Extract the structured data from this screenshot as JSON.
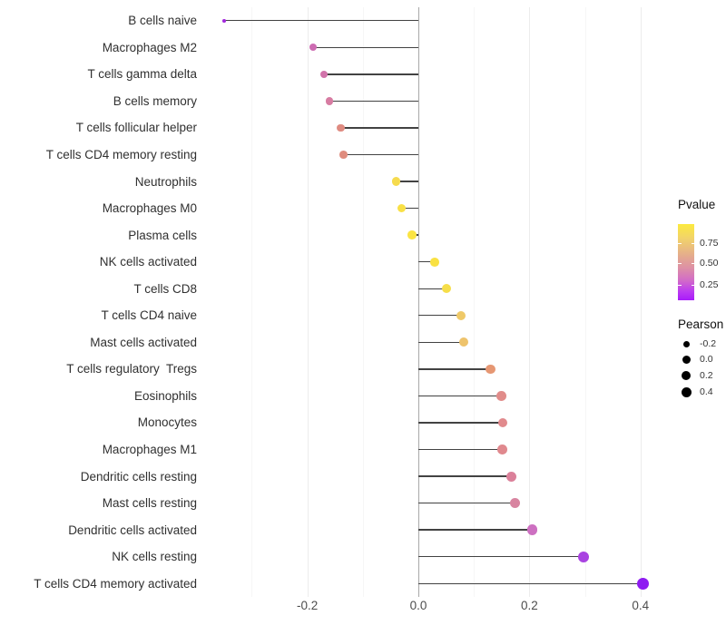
{
  "chart_data": {
    "type": "lollipop",
    "orientation": "horizontal",
    "title": "",
    "xlabel": "",
    "ylabel": "",
    "x_tick_labels": [
      "-0.2",
      "0.0",
      "0.2",
      "0.4"
    ],
    "x_tick_values": [
      -0.2,
      0.0,
      0.2,
      0.4
    ],
    "x_minor_grid_values": [
      -0.3,
      -0.1,
      0.1,
      0.3
    ],
    "x_major_grid_values": [
      -0.2,
      0.2,
      0.4
    ],
    "xlim": [
      -0.4,
      0.44
    ],
    "grid": "vertical-only",
    "zero_reference_line": 0.0,
    "categories": [
      "B cells naive",
      "Macrophages M2",
      "T cells gamma delta",
      "B cells memory",
      "T cells follicular helper",
      "T cells CD4 memory resting",
      "Neutrophils",
      "Macrophages M0",
      "Plasma cells",
      "NK cells activated",
      "T cells CD8",
      "T cells CD4 naive",
      "Mast cells activated",
      "T cells regulatory  Tregs",
      "Eosinophils",
      "Monocytes",
      "Macrophages M1",
      "Dendritic cells resting",
      "Mast cells resting",
      "Dendritic cells activated",
      "NK cells resting",
      "T cells CD4 memory activated"
    ],
    "series": [
      {
        "name": "Pearson correlation (size) colored by Pvalue",
        "points": [
          {
            "label": "B cells naive",
            "pearson": -0.35,
            "pvalue_est": 0.1,
            "color": "#A228DD",
            "radius": 1.9
          },
          {
            "label": "Macrophages M2",
            "pearson": -0.19,
            "pvalue_est": 0.38,
            "color": "#CD6CB2",
            "radius": 4.1
          },
          {
            "label": "T cells gamma delta",
            "pearson": -0.17,
            "pvalue_est": 0.41,
            "color": "#D173AA",
            "radius": 4.2
          },
          {
            "label": "B cells memory",
            "pearson": -0.16,
            "pvalue_est": 0.45,
            "color": "#D77CA2",
            "radius": 4.2
          },
          {
            "label": "T cells follicular helper",
            "pearson": -0.14,
            "pvalue_est": 0.52,
            "color": "#DF8B81",
            "radius": 4.3
          },
          {
            "label": "T cells CD4 memory resting",
            "pearson": -0.135,
            "pvalue_est": 0.53,
            "color": "#DF8C7E",
            "radius": 4.3
          },
          {
            "label": "Neutrophils",
            "pearson": -0.04,
            "pvalue_est": 0.84,
            "color": "#F6DB4E",
            "radius": 4.7
          },
          {
            "label": "Macrophages M0",
            "pearson": -0.03,
            "pvalue_est": 0.88,
            "color": "#F9E046",
            "radius": 4.8
          },
          {
            "label": "Plasma cells",
            "pearson": -0.011,
            "pvalue_est": 0.92,
            "color": "#FBE443",
            "radius": 4.8
          },
          {
            "label": "NK cells activated",
            "pearson": 0.03,
            "pvalue_est": 0.9,
            "color": "#F9E142",
            "radius": 4.9
          },
          {
            "label": "T cells CD8",
            "pearson": 0.05,
            "pvalue_est": 0.85,
            "color": "#F6DE49",
            "radius": 5.0
          },
          {
            "label": "T cells CD4 naive",
            "pearson": 0.077,
            "pvalue_est": 0.72,
            "color": "#EFC968",
            "radius": 5.1
          },
          {
            "label": "Mast cells activated",
            "pearson": 0.082,
            "pvalue_est": 0.7,
            "color": "#EEC36C",
            "radius": 5.1
          },
          {
            "label": "T cells regulatory  Tregs",
            "pearson": 0.13,
            "pvalue_est": 0.56,
            "color": "#E69773",
            "radius": 5.3
          },
          {
            "label": "Eosinophils",
            "pearson": 0.149,
            "pvalue_est": 0.51,
            "color": "#E18C8A",
            "radius": 5.4
          },
          {
            "label": "Monocytes",
            "pearson": 0.152,
            "pvalue_est": 0.5,
            "color": "#E18A8D",
            "radius": 5.4
          },
          {
            "label": "Macrophages M1",
            "pearson": 0.151,
            "pvalue_est": 0.5,
            "color": "#E0898E",
            "radius": 5.4
          },
          {
            "label": "Dendritic cells resting",
            "pearson": 0.167,
            "pvalue_est": 0.46,
            "color": "#DB809A",
            "radius": 5.5
          },
          {
            "label": "Mast cells resting",
            "pearson": 0.174,
            "pvalue_est": 0.45,
            "color": "#D884A0",
            "radius": 5.5
          },
          {
            "label": "Dendritic cells activated",
            "pearson": 0.205,
            "pvalue_est": 0.32,
            "color": "#CD70C1",
            "radius": 5.7
          },
          {
            "label": "NK cells resting",
            "pearson": 0.297,
            "pvalue_est": 0.16,
            "color": "#A943E1",
            "radius": 6.0
          },
          {
            "label": "T cells CD4 memory activated",
            "pearson": 0.404,
            "pvalue_est": 0.07,
            "color": "#8E1BF1",
            "radius": 6.6
          }
        ]
      }
    ],
    "legends": {
      "pvalue": {
        "title": "Pvalue",
        "position": "right",
        "tick_labels": [
          "0.75",
          "0.50",
          "0.25"
        ],
        "tick_fracs_from_top": [
          0.25,
          0.512,
          0.798
        ],
        "gradient_top_to_bottom": [
          "#FCEA3E",
          "#F2D469",
          "#E4AB8E",
          "#DD8FA6",
          "#D26BC8",
          "#BC3DF0",
          "#A81BFA"
        ],
        "gradient_stops_pct": [
          0,
          18,
          42,
          58,
          74,
          88,
          100
        ]
      },
      "pearson": {
        "title": "Pearson",
        "position": "right",
        "entries": [
          {
            "label": "-0.2",
            "radius": 3.5
          },
          {
            "label": "0.0",
            "radius": 4.5
          },
          {
            "label": "0.2",
            "radius": 5.0
          },
          {
            "label": "0.4",
            "radius": 5.5
          }
        ]
      }
    },
    "colors": {
      "stem": "#424242",
      "zero_line": "#A8A8A8",
      "grid_major": "#ECECEC",
      "grid_minor": "#F6F6F6",
      "background": "#FFFFFF"
    }
  }
}
